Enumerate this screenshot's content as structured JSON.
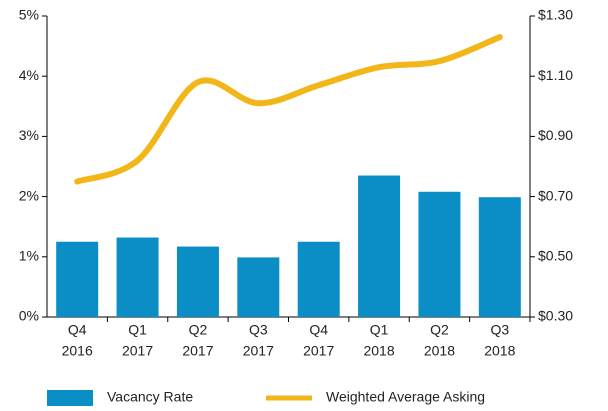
{
  "chart_data": {
    "type": "bar-line",
    "categories": [
      [
        "Q4",
        "2016"
      ],
      [
        "Q1",
        "2017"
      ],
      [
        "Q2",
        "2017"
      ],
      [
        "Q3",
        "2017"
      ],
      [
        "Q4",
        "2017"
      ],
      [
        "Q1",
        "2018"
      ],
      [
        "Q2",
        "2018"
      ],
      [
        "Q3",
        "2018"
      ]
    ],
    "series": [
      {
        "name": "Vacancy Rate",
        "type": "bar",
        "color": "#0b8ec6",
        "values": [
          1.25,
          1.32,
          1.17,
          0.99,
          1.25,
          2.35,
          2.08,
          1.99
        ]
      },
      {
        "name": "Weighted Average Asking",
        "type": "line",
        "axis": "y2",
        "color": "#f2b619",
        "values": [
          0.75,
          0.82,
          1.08,
          1.01,
          1.07,
          1.13,
          1.15,
          1.23
        ]
      }
    ],
    "ylim": [
      0,
      5
    ],
    "yticks": [
      {
        "value": 0,
        "label": "0%"
      },
      {
        "value": 1,
        "label": "1%"
      },
      {
        "value": 2,
        "label": "2%"
      },
      {
        "value": 3,
        "label": "3%"
      },
      {
        "value": 4,
        "label": "4%"
      },
      {
        "value": 5,
        "label": "5%"
      }
    ],
    "y2lim": [
      0.3,
      1.3
    ],
    "y2ticks": [
      {
        "value": 0.3,
        "label": "$0.30"
      },
      {
        "value": 0.5,
        "label": "$0.50"
      },
      {
        "value": 0.7,
        "label": "$0.70"
      },
      {
        "value": 0.9,
        "label": "$0.90"
      },
      {
        "value": 1.1,
        "label": "$1.10"
      },
      {
        "value": 1.3,
        "label": "$1.30"
      }
    ],
    "grid": false,
    "legend": "bottom"
  }
}
